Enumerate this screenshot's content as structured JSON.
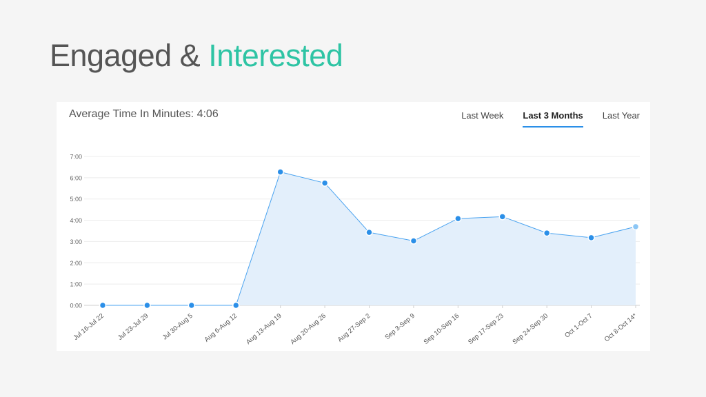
{
  "title": {
    "main": "Engaged & ",
    "accent": "Interested"
  },
  "card": {
    "heading": "Average Time In Minutes: 4:06",
    "tabs": [
      {
        "label": "Last Week",
        "active": false
      },
      {
        "label": "Last 3 Months",
        "active": true
      },
      {
        "label": "Last Year",
        "active": false
      }
    ]
  },
  "colors": {
    "accent_title": "#2ec4a4",
    "line": "#4aa3f0",
    "point": "#2b8fe8",
    "area": "#e3effb",
    "tab_underline": "#2b8fe8"
  },
  "chart_data": {
    "type": "area",
    "categories": [
      "Jul 16-Jul 22",
      "Jul 23-Jul 29",
      "Jul 30-Aug 5",
      "Aug 6-Aug 12",
      "Aug 13-Aug 19",
      "Aug 20-Aug 26",
      "Aug 27-Sep 2",
      "Sep 3-Sep 9",
      "Sep 10-Sep 16",
      "Sep 17-Sep 23",
      "Sep 24-Sep 30",
      "Oct 1-Oct 7",
      "Oct 8-Oct 14*"
    ],
    "values_minutes": [
      0,
      0,
      0,
      0,
      6.27,
      5.75,
      3.43,
      3.03,
      4.08,
      4.17,
      3.4,
      3.18,
      3.7
    ],
    "yticks": [
      "0:00",
      "1:00",
      "2:00",
      "3:00",
      "4:00",
      "5:00",
      "6:00",
      "7:00"
    ],
    "ylim": [
      0,
      7
    ],
    "grid": true,
    "title": "",
    "xlabel": "",
    "ylabel": ""
  }
}
